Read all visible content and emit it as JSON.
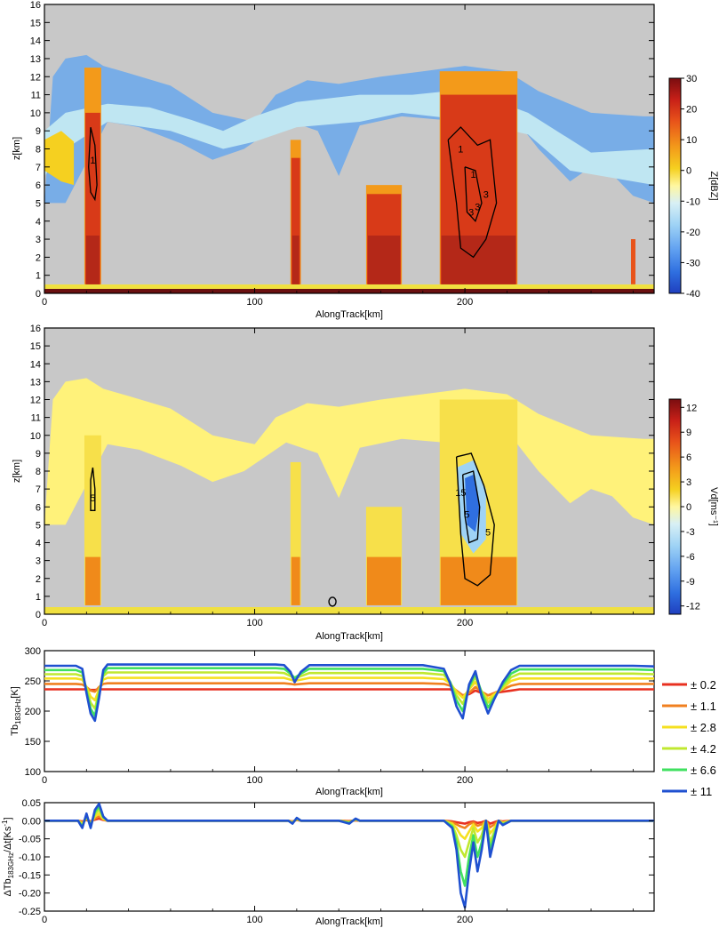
{
  "chart_data": [
    {
      "type": "heatmap",
      "xlabel": "AlongTrack[km]",
      "ylabel": "z[km]",
      "colorbar_label": "Z[dBZ]",
      "xticks": [
        0,
        100,
        200
      ],
      "xlim": [
        0,
        290
      ],
      "yticks": [
        0,
        1,
        2,
        3,
        4,
        5,
        6,
        7,
        8,
        9,
        10,
        11,
        12,
        13,
        14,
        15,
        16
      ],
      "ylim": [
        0,
        16
      ],
      "colorbar_ticks": [
        30,
        20,
        10,
        0,
        -10,
        -20,
        -30,
        -40
      ],
      "colorbar_range": [
        -40,
        30
      ],
      "colorscale": [
        "#1f3fbf",
        "#2f6fe0",
        "#5f9ff0",
        "#9fd3f5",
        "#d8f0f5",
        "#fff7a0",
        "#f5d020",
        "#f39a1a",
        "#e8531a",
        "#c82018",
        "#7a0d10"
      ],
      "background_color": "#c8c8c8",
      "ground_color": "#f0e040",
      "contour_labels": [
        "1",
        "1",
        "1",
        "3",
        "3",
        "3"
      ],
      "features": [
        {
          "x0": 19,
          "x1": 27,
          "top": 12.5,
          "core_top": 10.0
        },
        {
          "x0": 117,
          "x1": 122,
          "top": 8.5,
          "core_top": 7.5
        },
        {
          "x0": 153,
          "x1": 170,
          "top": 6.0,
          "core_top": 5.5
        },
        {
          "x0": 188,
          "x1": 225,
          "top": 12.3,
          "core_top": 11.0
        }
      ]
    },
    {
      "type": "heatmap",
      "xlabel": "AlongTrack[km]",
      "ylabel": "z[km]",
      "colorbar_label": "Vd[ms⁻¹]",
      "xticks": [
        0,
        100,
        200
      ],
      "xlim": [
        0,
        290
      ],
      "yticks": [
        0,
        1,
        2,
        3,
        4,
        5,
        6,
        7,
        8,
        9,
        10,
        11,
        12,
        13,
        14,
        15,
        16
      ],
      "ylim": [
        0,
        16
      ],
      "colorbar_ticks": [
        12,
        9,
        6,
        3,
        0,
        -3,
        -6,
        -9,
        -12
      ],
      "colorbar_range": [
        -13,
        13
      ],
      "colorscale": [
        "#1f3fbf",
        "#2f6fe0",
        "#5f9ff0",
        "#9fd3f5",
        "#d8f0f5",
        "#fff7a0",
        "#f5d020",
        "#f39a1a",
        "#e8531a",
        "#c82018",
        "#7a0d10"
      ],
      "background_color": "#c8c8c8",
      "contour_labels": [
        "5",
        "15",
        "5",
        "5"
      ]
    },
    {
      "type": "line",
      "xlabel": "AlongTrack[km]",
      "ylabel": "Tb₁₈₃GHz[K]",
      "xticks": [
        0,
        100,
        200
      ],
      "xlim": [
        0,
        290
      ],
      "yticks": [
        100,
        150,
        200,
        250,
        300
      ],
      "ylim": [
        100,
        300
      ],
      "x": [
        0,
        5,
        10,
        15,
        18,
        20,
        22,
        24,
        26,
        28,
        30,
        40,
        60,
        80,
        100,
        110,
        114,
        117,
        119,
        122,
        126,
        140,
        150,
        160,
        180,
        190,
        193,
        196,
        199,
        202,
        205,
        208,
        211,
        214,
        218,
        222,
        226,
        230,
        250,
        270,
        280,
        290
      ],
      "series": [
        {
          "name": "± 0.2",
          "color": "#e83020",
          "values": [
            236,
            236,
            236,
            236,
            236,
            236,
            235,
            235,
            236,
            236,
            236,
            236,
            236,
            236,
            236,
            236,
            236,
            236,
            236,
            236,
            236,
            236,
            236,
            236,
            236,
            236,
            236,
            232,
            226,
            228,
            234,
            230,
            226,
            230,
            232,
            234,
            236,
            236,
            236,
            236,
            236,
            236
          ]
        },
        {
          "name": "± 1.1",
          "color": "#f08020",
          "values": [
            245,
            245,
            245,
            245,
            244,
            240,
            234,
            232,
            240,
            245,
            246,
            246,
            246,
            246,
            246,
            246,
            246,
            245,
            244,
            245,
            246,
            246,
            246,
            246,
            246,
            245,
            242,
            234,
            226,
            230,
            240,
            232,
            226,
            230,
            236,
            242,
            245,
            245,
            245,
            245,
            245,
            245
          ]
        },
        {
          "name": "± 2.8",
          "color": "#f5e020",
          "values": [
            254,
            254,
            254,
            254,
            252,
            240,
            224,
            218,
            236,
            252,
            255,
            255,
            255,
            255,
            255,
            255,
            255,
            252,
            250,
            252,
            255,
            255,
            255,
            255,
            255,
            253,
            246,
            232,
            222,
            236,
            248,
            232,
            220,
            228,
            238,
            250,
            254,
            254,
            254,
            254,
            254,
            254
          ]
        },
        {
          "name": "± 4.2",
          "color": "#c0e830",
          "values": [
            261,
            261,
            261,
            261,
            258,
            238,
            214,
            204,
            232,
            258,
            264,
            264,
            264,
            264,
            264,
            264,
            263,
            258,
            254,
            258,
            263,
            263,
            263,
            263,
            263,
            260,
            248,
            226,
            212,
            238,
            256,
            232,
            214,
            224,
            240,
            256,
            262,
            262,
            262,
            262,
            262,
            261
          ]
        },
        {
          "name": "± 6.6",
          "color": "#40e060",
          "values": [
            268,
            268,
            268,
            268,
            264,
            234,
            204,
            192,
            228,
            262,
            271,
            271,
            271,
            271,
            271,
            271,
            270,
            262,
            255,
            262,
            270,
            270,
            270,
            270,
            270,
            266,
            248,
            218,
            200,
            240,
            262,
            230,
            206,
            222,
            244,
            262,
            269,
            269,
            269,
            269,
            269,
            268
          ]
        },
        {
          "name": "± 11",
          "color": "#1f50d0",
          "values": [
            275,
            275,
            275,
            275,
            270,
            230,
            196,
            184,
            222,
            268,
            277,
            277,
            277,
            277,
            277,
            277,
            276,
            265,
            248,
            265,
            276,
            276,
            276,
            276,
            276,
            270,
            246,
            208,
            188,
            244,
            266,
            224,
            196,
            220,
            248,
            268,
            275,
            275,
            275,
            275,
            275,
            274
          ]
        }
      ],
      "legend_position": "right"
    },
    {
      "type": "line",
      "xlabel": "AlongTrack[km]",
      "ylabel": "ΔTb₁₈₃GHz/Δt[Ks⁻¹]",
      "xticks": [
        0,
        100,
        200
      ],
      "xlim": [
        0,
        290
      ],
      "yticks": [
        0.05,
        0.0,
        -0.05,
        -0.1,
        -0.15,
        -0.2,
        -0.25
      ],
      "ylim": [
        -0.25,
        0.05
      ],
      "x": [
        0,
        10,
        16,
        18,
        20,
        22,
        24,
        26,
        28,
        30,
        40,
        60,
        80,
        100,
        110,
        116,
        118,
        120,
        122,
        124,
        140,
        145,
        148,
        150,
        160,
        180,
        190,
        194,
        196,
        198,
        200,
        202,
        204,
        206,
        208,
        210,
        212,
        214,
        216,
        218,
        222,
        230,
        250,
        270,
        280,
        290
      ],
      "series": [
        {
          "name": "± 0.2",
          "color": "#e83020",
          "values": [
            0,
            0,
            0,
            -0.002,
            0.002,
            -0.002,
            0.003,
            0.006,
            0.002,
            0,
            0,
            0,
            0,
            0,
            0,
            0,
            -0.002,
            0.002,
            0,
            0,
            0,
            -0.001,
            0.001,
            0,
            0,
            0,
            0,
            -0.002,
            -0.004,
            -0.006,
            -0.008,
            -0.004,
            -0.002,
            -0.006,
            -0.004,
            0,
            -0.008,
            -0.004,
            0,
            -0.002,
            0,
            0,
            0,
            0,
            0,
            0
          ]
        },
        {
          "name": "± 1.1",
          "color": "#f08020",
          "values": [
            0,
            0,
            0,
            -0.004,
            0.004,
            -0.004,
            0.006,
            0.012,
            0.003,
            0,
            0,
            0,
            0,
            0,
            0,
            0,
            -0.003,
            0.003,
            0,
            0,
            0,
            -0.002,
            0.002,
            0,
            0,
            0,
            0,
            -0.004,
            -0.01,
            -0.016,
            -0.02,
            -0.01,
            -0.004,
            -0.014,
            -0.01,
            0,
            -0.018,
            -0.01,
            0,
            -0.004,
            0,
            0,
            0,
            0,
            0,
            0
          ]
        },
        {
          "name": "± 2.8",
          "color": "#f5e020",
          "values": [
            0,
            0,
            0,
            -0.008,
            0.008,
            -0.008,
            0.012,
            0.02,
            0.005,
            0,
            0,
            0,
            0,
            0,
            0,
            0,
            -0.004,
            0.004,
            0,
            0,
            0,
            -0.004,
            0.003,
            0,
            0,
            0,
            0,
            -0.008,
            -0.02,
            -0.04,
            -0.05,
            -0.03,
            -0.01,
            -0.03,
            -0.02,
            0,
            -0.035,
            -0.02,
            0,
            -0.006,
            0,
            0,
            0,
            0,
            0,
            0
          ]
        },
        {
          "name": "± 4.2",
          "color": "#c0e830",
          "values": [
            0,
            0,
            0,
            -0.012,
            0.012,
            -0.012,
            0.018,
            0.03,
            0.008,
            0,
            0,
            0,
            0,
            0,
            0,
            0,
            -0.006,
            0.006,
            0,
            0,
            0,
            -0.005,
            0.004,
            0,
            0,
            0,
            0,
            -0.012,
            -0.04,
            -0.08,
            -0.1,
            -0.06,
            -0.02,
            -0.06,
            -0.04,
            0,
            -0.06,
            -0.03,
            0,
            -0.008,
            0,
            0,
            0,
            0,
            0,
            0
          ]
        },
        {
          "name": "± 6.6",
          "color": "#40e060",
          "values": [
            0,
            0,
            0,
            -0.016,
            0.016,
            -0.016,
            0.024,
            0.04,
            0.01,
            0,
            0,
            0,
            0,
            0,
            0,
            0,
            -0.007,
            0.007,
            0,
            0,
            0,
            -0.006,
            0.005,
            0,
            0,
            0,
            0,
            -0.016,
            -0.06,
            -0.14,
            -0.18,
            -0.1,
            -0.04,
            -0.1,
            -0.06,
            0,
            -0.08,
            -0.04,
            0,
            -0.01,
            0,
            0,
            0,
            0,
            0,
            0
          ]
        },
        {
          "name": "± 11",
          "color": "#1f50d0",
          "values": [
            0,
            0,
            0,
            -0.02,
            0.02,
            -0.02,
            0.03,
            0.047,
            0.012,
            0,
            0,
            0,
            0,
            0,
            0,
            0,
            -0.008,
            0.008,
            0,
            0,
            0,
            -0.008,
            0.006,
            0,
            0,
            0,
            0,
            -0.02,
            -0.08,
            -0.2,
            -0.24,
            -0.14,
            -0.06,
            -0.14,
            -0.08,
            0,
            -0.1,
            -0.05,
            0,
            -0.012,
            0,
            0,
            0,
            0,
            0,
            0
          ]
        }
      ]
    }
  ]
}
